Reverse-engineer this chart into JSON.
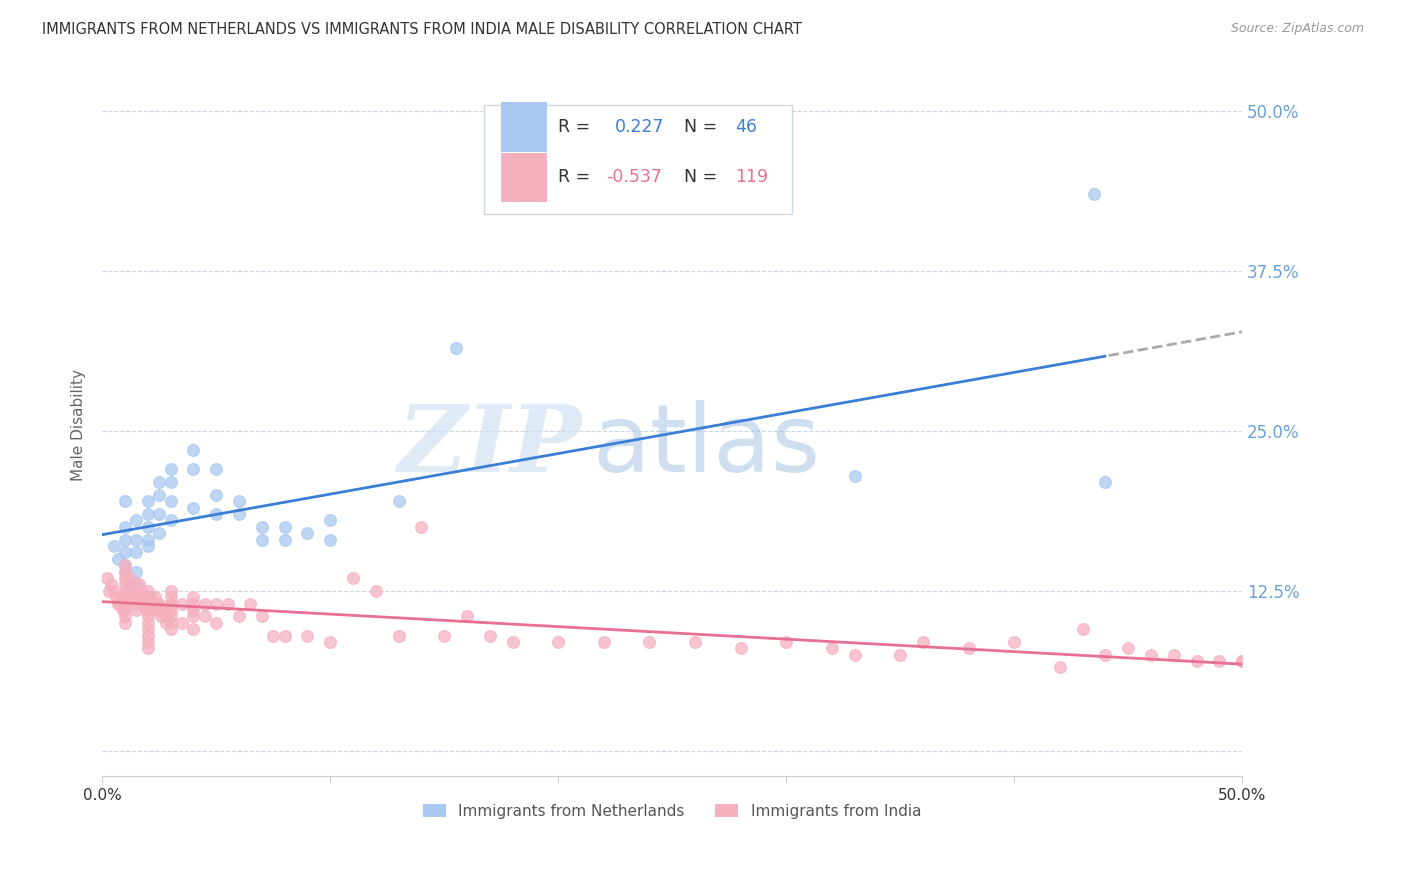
{
  "title": "IMMIGRANTS FROM NETHERLANDS VS IMMIGRANTS FROM INDIA MALE DISABILITY CORRELATION CHART",
  "source": "Source: ZipAtlas.com",
  "ylabel": "Male Disability",
  "yticks": [
    0.0,
    0.125,
    0.25,
    0.375,
    0.5
  ],
  "ytick_labels": [
    "",
    "12.5%",
    "25.0%",
    "37.5%",
    "50.0%"
  ],
  "xlim": [
    0.0,
    0.5
  ],
  "ylim": [
    -0.02,
    0.53
  ],
  "netherlands_color": "#a8c8f0",
  "india_color": "#f5b0c0",
  "netherlands_line_color": "#3a7fd5",
  "india_line_color": "#e87090",
  "dashed_extension_color": "#aaaaaa",
  "background_color": "#ffffff",
  "grid_color": "#c8d8e8",
  "R_netherlands": 0.227,
  "N_netherlands": 46,
  "R_india": -0.537,
  "N_india": 119,
  "legend_label_netherlands": "Immigrants from Netherlands",
  "legend_label_india": "Immigrants from India",
  "watermark_zip": "ZIP",
  "watermark_atlas": "atlas",
  "netherlands_x": [
    0.005,
    0.007,
    0.01,
    0.01,
    0.01,
    0.01,
    0.01,
    0.01,
    0.015,
    0.015,
    0.015,
    0.015,
    0.015,
    0.02,
    0.02,
    0.02,
    0.02,
    0.02,
    0.025,
    0.025,
    0.025,
    0.025,
    0.03,
    0.03,
    0.03,
    0.03,
    0.04,
    0.04,
    0.04,
    0.05,
    0.05,
    0.05,
    0.06,
    0.06,
    0.07,
    0.07,
    0.08,
    0.08,
    0.09,
    0.1,
    0.1,
    0.13,
    0.155,
    0.33,
    0.435,
    0.44
  ],
  "netherlands_y": [
    0.16,
    0.15,
    0.195,
    0.175,
    0.165,
    0.155,
    0.145,
    0.14,
    0.18,
    0.165,
    0.155,
    0.14,
    0.13,
    0.195,
    0.185,
    0.175,
    0.165,
    0.16,
    0.21,
    0.2,
    0.185,
    0.17,
    0.22,
    0.21,
    0.195,
    0.18,
    0.235,
    0.22,
    0.19,
    0.22,
    0.2,
    0.185,
    0.195,
    0.185,
    0.175,
    0.165,
    0.175,
    0.165,
    0.17,
    0.18,
    0.165,
    0.195,
    0.315,
    0.215,
    0.435,
    0.21
  ],
  "india_x": [
    0.002,
    0.003,
    0.004,
    0.005,
    0.006,
    0.007,
    0.008,
    0.008,
    0.009,
    0.009,
    0.01,
    0.01,
    0.01,
    0.01,
    0.01,
    0.01,
    0.01,
    0.01,
    0.01,
    0.01,
    0.012,
    0.012,
    0.013,
    0.013,
    0.014,
    0.014,
    0.015,
    0.015,
    0.015,
    0.015,
    0.016,
    0.016,
    0.017,
    0.017,
    0.018,
    0.018,
    0.019,
    0.019,
    0.02,
    0.02,
    0.02,
    0.02,
    0.02,
    0.02,
    0.02,
    0.02,
    0.02,
    0.02,
    0.021,
    0.021,
    0.022,
    0.022,
    0.023,
    0.023,
    0.024,
    0.025,
    0.025,
    0.026,
    0.026,
    0.027,
    0.028,
    0.028,
    0.03,
    0.03,
    0.03,
    0.03,
    0.03,
    0.03,
    0.03,
    0.03,
    0.035,
    0.035,
    0.04,
    0.04,
    0.04,
    0.04,
    0.04,
    0.045,
    0.045,
    0.05,
    0.05,
    0.055,
    0.06,
    0.065,
    0.07,
    0.075,
    0.08,
    0.09,
    0.1,
    0.11,
    0.12,
    0.13,
    0.14,
    0.15,
    0.16,
    0.17,
    0.18,
    0.2,
    0.22,
    0.24,
    0.26,
    0.28,
    0.3,
    0.32,
    0.33,
    0.35,
    0.36,
    0.38,
    0.4,
    0.42,
    0.43,
    0.44,
    0.45,
    0.46,
    0.47,
    0.48,
    0.49,
    0.5,
    0.5
  ],
  "india_y": [
    0.135,
    0.125,
    0.13,
    0.125,
    0.12,
    0.115,
    0.12,
    0.115,
    0.12,
    0.11,
    0.145,
    0.14,
    0.135,
    0.13,
    0.125,
    0.12,
    0.115,
    0.11,
    0.105,
    0.1,
    0.135,
    0.13,
    0.13,
    0.125,
    0.125,
    0.12,
    0.125,
    0.12,
    0.115,
    0.11,
    0.13,
    0.12,
    0.125,
    0.12,
    0.12,
    0.115,
    0.115,
    0.11,
    0.125,
    0.12,
    0.115,
    0.11,
    0.105,
    0.1,
    0.095,
    0.09,
    0.085,
    0.08,
    0.12,
    0.115,
    0.115,
    0.11,
    0.12,
    0.115,
    0.115,
    0.115,
    0.11,
    0.11,
    0.105,
    0.11,
    0.105,
    0.1,
    0.125,
    0.12,
    0.115,
    0.115,
    0.11,
    0.105,
    0.1,
    0.095,
    0.115,
    0.1,
    0.12,
    0.115,
    0.11,
    0.105,
    0.095,
    0.115,
    0.105,
    0.115,
    0.1,
    0.115,
    0.105,
    0.115,
    0.105,
    0.09,
    0.09,
    0.09,
    0.085,
    0.135,
    0.125,
    0.09,
    0.175,
    0.09,
    0.105,
    0.09,
    0.085,
    0.085,
    0.085,
    0.085,
    0.085,
    0.08,
    0.085,
    0.08,
    0.075,
    0.075,
    0.085,
    0.08,
    0.085,
    0.065,
    0.095,
    0.075,
    0.08,
    0.075,
    0.075,
    0.07,
    0.07,
    0.07,
    0.07
  ]
}
